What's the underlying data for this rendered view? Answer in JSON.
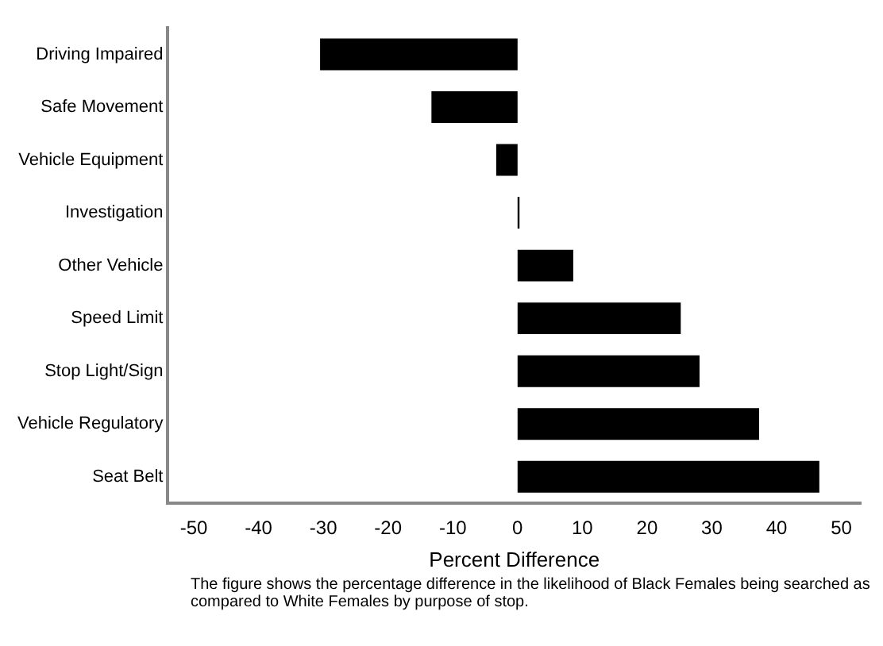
{
  "chart_data": {
    "type": "bar",
    "orientation": "horizontal",
    "xlabel": "Percent Difference",
    "categories": [
      "Driving Impaired",
      "Safe Movement",
      "Vehicle Equipment",
      "Investigation",
      "Other Vehicle",
      "Speed Limit",
      "Stop Light/Sign",
      "Vehicle Regulatory",
      "Seat Belt"
    ],
    "values": [
      -30.5,
      -13.3,
      -3.3,
      0.3,
      8.6,
      25.2,
      28.1,
      37.3,
      46.6
    ],
    "color": "#000000",
    "xlim": [
      -54,
      53
    ],
    "xticks": [
      -50,
      -40,
      -30,
      -20,
      -10,
      0,
      10,
      20,
      30,
      40,
      50
    ],
    "grid": false,
    "legend": false,
    "annotations": [
      "The figure shows the percentage difference in the likelihood of Black Females being searched as compared to White Females by purpose of stop."
    ]
  }
}
